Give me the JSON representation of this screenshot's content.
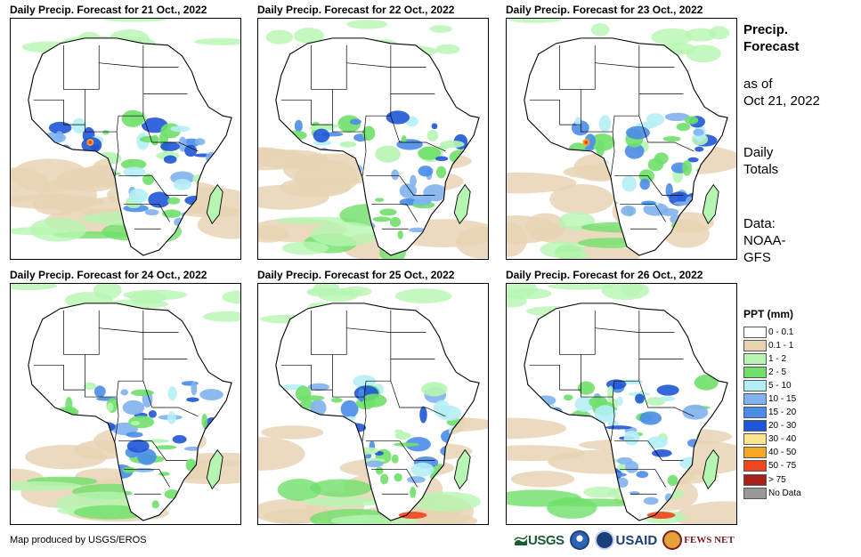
{
  "panels": [
    {
      "title": "Daily Precip. Forecast for 21 Oct., 2022"
    },
    {
      "title": "Daily Precip. Forecast for 22 Oct., 2022"
    },
    {
      "title": "Daily Precip. Forecast for 23 Oct., 2022"
    },
    {
      "title": "Daily Precip. Forecast for 24 Oct., 2022"
    },
    {
      "title": "Daily Precip. Forecast for 25 Oct., 2022"
    },
    {
      "title": "Daily Precip. Forecast for 26 Oct., 2022"
    }
  ],
  "side": {
    "title_line1": "Precip.",
    "title_line2": "Forecast",
    "asof_line1": "as of",
    "asof_line2": "Oct 21, 2022",
    "totals_line1": "Daily",
    "totals_line2": "Totals",
    "data_line1": "Data:",
    "data_line2": "NOAA-",
    "data_line3": "GFS"
  },
  "legend": {
    "title": "PPT (mm)",
    "items": [
      {
        "label": "0 - 0.1",
        "color": "#ffffff"
      },
      {
        "label": "0.1 - 1",
        "color": "#e8d3b4"
      },
      {
        "label": "1 - 2",
        "color": "#b6f5b2"
      },
      {
        "label": "2 - 5",
        "color": "#6fe06a"
      },
      {
        "label": "5 - 10",
        "color": "#b4eef5"
      },
      {
        "label": "10 - 15",
        "color": "#7fb2ee"
      },
      {
        "label": "15 - 20",
        "color": "#4a8ce8"
      },
      {
        "label": "20 - 30",
        "color": "#1f55d6"
      },
      {
        "label": "30 - 40",
        "color": "#fbe58c"
      },
      {
        "label": "40 - 50",
        "color": "#f5a623"
      },
      {
        "label": "50 - 75",
        "color": "#f0451c"
      },
      {
        "label": "> 75",
        "color": "#a8201a"
      },
      {
        "label": "No Data",
        "color": "#999999"
      }
    ]
  },
  "credit": "Map produced by USGS/EROS",
  "logos": {
    "usgs": "USGS",
    "usaid": "USAID",
    "fews": "FEWS NET"
  }
}
